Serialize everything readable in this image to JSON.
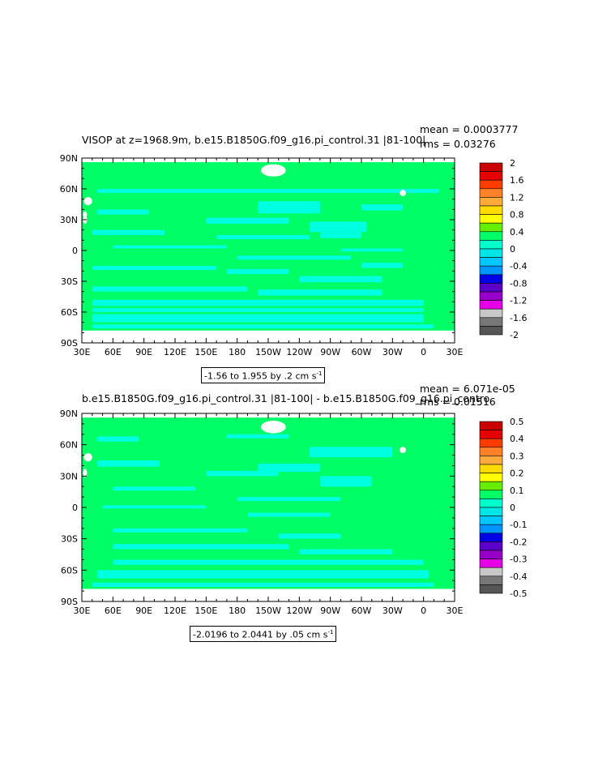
{
  "panels": [
    {
      "title": "VISOP at z=1968.9m, b.e15.B1850G.f09_g16.pi_control.31 |81-100|",
      "mean_text": "mean = 0.0003777",
      "rms_text": "rms = 0.03276",
      "range_prefix": "-1.56 to 1.955 by .2 cm s",
      "range_sup": "-1",
      "colorbar_labels": [
        "2",
        "1.6",
        "1.2",
        "0.8",
        "0.4",
        "0",
        "-0.4",
        "-0.8",
        "-1.2",
        "-1.6",
        "-2"
      ],
      "colorbar_colors": [
        "#c80000",
        "#e60000",
        "#ff3c00",
        "#ff8228",
        "#ffaa3c",
        "#ffdc00",
        "#ffff00",
        "#66ee00",
        "#00ff66",
        "#00ffcc",
        "#00e6e6",
        "#00c8ff",
        "#0096ff",
        "#0000e6",
        "#5a00c8",
        "#9600c8",
        "#e600e6",
        "#c8c8c8",
        "#777777",
        "#555555"
      ]
    },
    {
      "title": "b.e15.B1850G.f09_g16.pi_control.31 |81-100| - b.e15.B1850G.f09_g16.pi_contro",
      "mean_text": "mean = 6.071e-05",
      "rms_text": "rms = 0.01516",
      "range_prefix": "-2.0196 to 2.0441 by .05 cm s",
      "range_sup": "-1",
      "colorbar_labels": [
        "0.5",
        "0.4",
        "0.3",
        "0.2",
        "0.1",
        "0",
        "-0.1",
        "-0.2",
        "-0.3",
        "-0.4",
        "-0.5"
      ],
      "colorbar_colors": [
        "#c80000",
        "#e60000",
        "#ff3c00",
        "#ff8228",
        "#ffaa3c",
        "#ffdc00",
        "#ffff00",
        "#66ee00",
        "#00ff66",
        "#00ffcc",
        "#00e6e6",
        "#00c8ff",
        "#0096ff",
        "#0000e6",
        "#5a00c8",
        "#9600c8",
        "#e600e6",
        "#c8c8c8",
        "#777777",
        "#555555"
      ]
    }
  ],
  "lon_labels": [
    "30E",
    "60E",
    "90E",
    "120E",
    "150E",
    "180",
    "150W",
    "120W",
    "90W",
    "60W",
    "30W",
    "0",
    "30E"
  ],
  "lat_labels": [
    "90N",
    "60N",
    "30N",
    "0",
    "30S",
    "60S",
    "90S"
  ],
  "colors": {
    "ocean": "#00ff66",
    "band": "#00ffe0",
    "land": "#ffffff"
  }
}
